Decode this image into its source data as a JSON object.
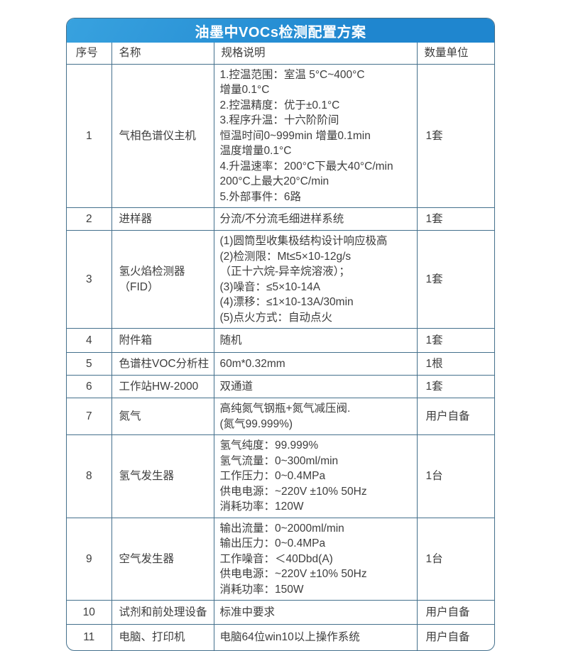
{
  "title": "油墨中VOCs检测配置方案",
  "colors": {
    "header_blue": "#1f86cf",
    "header_blue_light": "#38a2df",
    "grid_line": "#44708c",
    "text": "#3d3d3d"
  },
  "table": {
    "columns": [
      "序号",
      "名称",
      "规格说明",
      "数量单位"
    ],
    "rows": [
      {
        "no": "1",
        "name": "气相色谱仪主机",
        "spec": [
          "1.控温范围：室温 5°C~400°C",
          "增量0.1°C",
          "2.控温精度：优于±0.1°C",
          "3.程序升温：十六阶阶间",
          "恒温时间0~999min 增量0.1min",
          "温度增量0.1°C",
          "4.升温速率：200°C下最大40°C/min",
          "200°C上最大20°C/min",
          "5.外部事件：6路"
        ],
        "qty": "1套"
      },
      {
        "no": "2",
        "name": "进样器",
        "spec": [
          "分流/不分流毛细进样系统"
        ],
        "qty": "1套"
      },
      {
        "no": "3",
        "name": "氢火焰检测器（FID）",
        "spec": [
          "(1)圆筒型收集极结构设计响应极高",
          "(2)检测限：Mt≤5×10-12g/s",
          "（正十六烷-异辛烷溶液）；",
          "(3)噪音：≤5×10-14A",
          "(4)漂移：≤1×10-13A/30min",
          "(5)点火方式：自动点火"
        ],
        "qty": "1套"
      },
      {
        "no": "4",
        "name": "附件箱",
        "spec": [
          "随机"
        ],
        "qty": "1套"
      },
      {
        "no": "5",
        "name": "色谱柱VOC分析柱",
        "spec": [
          "60m*0.32mm"
        ],
        "qty": "1根"
      },
      {
        "no": "6",
        "name": "工作站HW-2000",
        "spec": [
          "双通道"
        ],
        "qty": "1套"
      },
      {
        "no": "7",
        "name": "氮气",
        "spec": [
          "高纯氮气钢瓶+氮气减压阀.",
          "(氮气99.999%)"
        ],
        "qty": "用户自备"
      },
      {
        "no": "8",
        "name": "氢气发生器",
        "spec": [
          "氢气纯度：99.999%",
          "氢气流量：0~300ml/min",
          "工作压力：0~0.4MPa",
          "供电电源：~220V ±10% 50Hz",
          "消耗功率：120W"
        ],
        "qty": "1台"
      },
      {
        "no": "9",
        "name": "空气发生器",
        "spec": [
          "输出流量：0~2000ml/min",
          "输出压力：0~0.4MPa",
          "工作噪音：＜40Dbd(A)",
          "供电电源：~220V ±10% 50Hz",
          "消耗功率：150W"
        ],
        "qty": "1台"
      },
      {
        "no": "10",
        "name": "试剂和前处理设备",
        "spec": [
          "标准中要求"
        ],
        "qty": "用户自备"
      },
      {
        "no": "11",
        "name": "电脑、打印机",
        "spec": [
          "电脑64位win10以上操作系统"
        ],
        "qty": "用户自备"
      }
    ]
  }
}
